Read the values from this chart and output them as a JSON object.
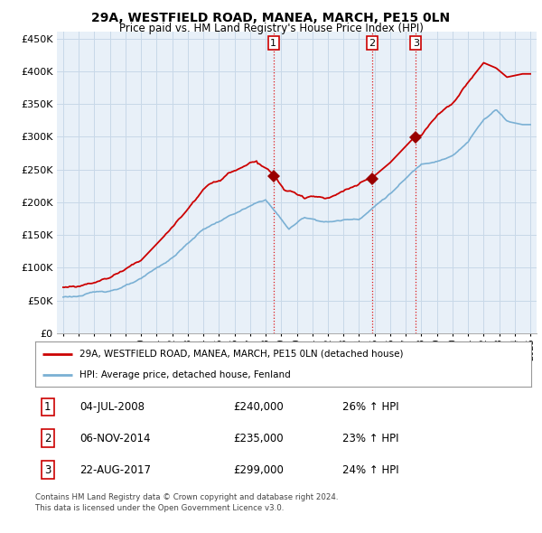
{
  "title": "29A, WESTFIELD ROAD, MANEA, MARCH, PE15 0LN",
  "subtitle": "Price paid vs. HM Land Registry's House Price Index (HPI)",
  "ylabel_values": [
    0,
    50000,
    100000,
    150000,
    200000,
    250000,
    300000,
    350000,
    400000,
    450000
  ],
  "ylabel_labels": [
    "£0",
    "£50K",
    "£100K",
    "£150K",
    "£200K",
    "£250K",
    "£300K",
    "£350K",
    "£400K",
    "£450K"
  ],
  "ylim": [
    0,
    460000
  ],
  "sale_prices": [
    240000,
    235000,
    299000
  ],
  "sale_labels": [
    "1",
    "2",
    "3"
  ],
  "sale_hpi_pct": [
    "26% ↑ HPI",
    "23% ↑ HPI",
    "24% ↑ HPI"
  ],
  "sale_date_labels": [
    "04-JUL-2008",
    "06-NOV-2014",
    "22-AUG-2017"
  ],
  "sale_price_labels": [
    "£240,000",
    "£235,000",
    "£299,000"
  ],
  "legend_line1": "29A, WESTFIELD ROAD, MANEA, MARCH, PE15 0LN (detached house)",
  "legend_line2": "HPI: Average price, detached house, Fenland",
  "footer1": "Contains HM Land Registry data © Crown copyright and database right 2024.",
  "footer2": "This data is licensed under the Open Government Licence v3.0.",
  "hpi_color": "#7ab0d4",
  "sale_line_color": "#cc0000",
  "sale_dot_color": "#990000",
  "vline_color": "#dd0000",
  "grid_color": "#c8d8e8",
  "bg_color": "#e8f0f8",
  "box_bg": "#ffffff"
}
